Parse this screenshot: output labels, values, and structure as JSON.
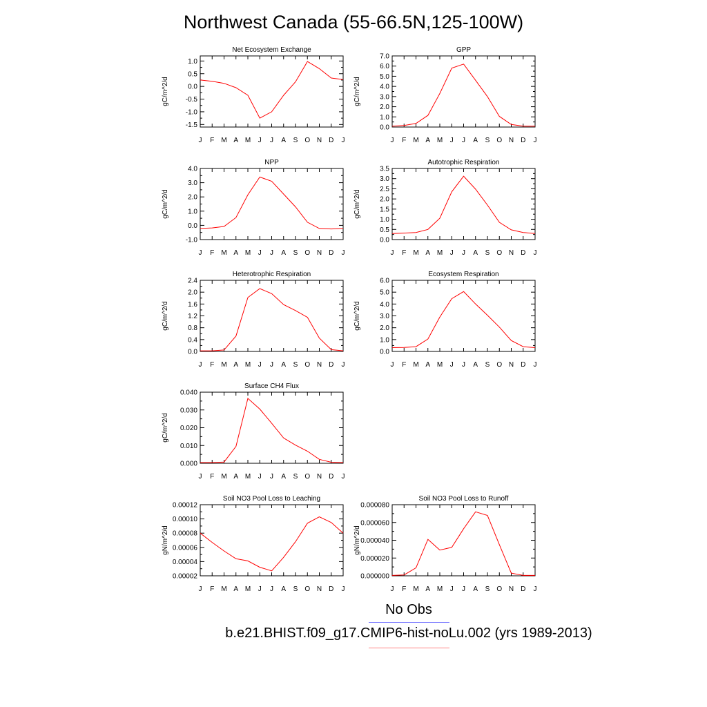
{
  "page": {
    "title": "Northwest Canada (55-66.5N,125-100W)"
  },
  "legend": {
    "entries": [
      {
        "label": "No Obs",
        "color": "#8080ff"
      },
      {
        "label": "b.e21.BHIST.f09_g17.CMIP6-hist-noLu.002 (yrs 1989-2013)",
        "color": "#ff8080"
      }
    ]
  },
  "colors": {
    "series": "#ff0000",
    "axis": "#000000"
  },
  "chart_data": [
    {
      "type": "line",
      "title": "Net Ecosystem Exchange",
      "ylabel": "gC/m^2/d",
      "categories": [
        "J",
        "F",
        "M",
        "A",
        "M",
        "J",
        "J",
        "A",
        "S",
        "O",
        "N",
        "D",
        "J"
      ],
      "ylim": [
        -1.6,
        1.2
      ],
      "yticks": [
        "1.0",
        "0.5",
        "0.0",
        "-0.5",
        "-1.0",
        "-1.5"
      ],
      "series": [
        {
          "values": [
            0.25,
            0.2,
            0.12,
            -0.05,
            -0.35,
            -1.25,
            -1.0,
            -0.35,
            0.18,
            0.98,
            0.7,
            0.33,
            0.27
          ]
        }
      ]
    },
    {
      "type": "line",
      "title": "GPP",
      "ylabel": "gC/m^2/d",
      "categories": [
        "J",
        "F",
        "M",
        "A",
        "M",
        "J",
        "J",
        "A",
        "S",
        "O",
        "N",
        "D",
        "J"
      ],
      "ylim": [
        0,
        7.0
      ],
      "yticks": [
        "7.0",
        "6.0",
        "5.0",
        "4.0",
        "3.0",
        "2.0",
        "1.0",
        "0.0"
      ],
      "series": [
        {
          "values": [
            0.08,
            0.15,
            0.35,
            1.15,
            3.3,
            5.8,
            6.2,
            4.6,
            3.0,
            1.05,
            0.25,
            0.08,
            0.08
          ]
        }
      ]
    },
    {
      "type": "line",
      "title": "NPP",
      "ylabel": "gC/m^2/d",
      "categories": [
        "J",
        "F",
        "M",
        "A",
        "M",
        "J",
        "J",
        "A",
        "S",
        "O",
        "N",
        "D",
        "J"
      ],
      "ylim": [
        -1.0,
        4.0
      ],
      "yticks": [
        "4.0",
        "3.0",
        "2.0",
        "1.0",
        "0.0",
        "-1.0"
      ],
      "series": [
        {
          "values": [
            -0.22,
            -0.18,
            -0.08,
            0.55,
            2.15,
            3.4,
            3.1,
            2.2,
            1.3,
            0.22,
            -0.22,
            -0.25,
            -0.22
          ]
        }
      ]
    },
    {
      "type": "line",
      "title": "Autotrophic Respiration",
      "ylabel": "gC/m^2/d",
      "categories": [
        "J",
        "F",
        "M",
        "A",
        "M",
        "J",
        "J",
        "A",
        "S",
        "O",
        "N",
        "D",
        "J"
      ],
      "ylim": [
        0,
        3.5
      ],
      "yticks": [
        "3.5",
        "3.0",
        "2.5",
        "2.0",
        "1.5",
        "1.0",
        "0.5",
        "0.0"
      ],
      "series": [
        {
          "values": [
            0.3,
            0.32,
            0.35,
            0.5,
            1.05,
            2.35,
            3.12,
            2.48,
            1.7,
            0.85,
            0.48,
            0.35,
            0.3
          ]
        }
      ]
    },
    {
      "type": "line",
      "title": "Heterotrophic Respiration",
      "ylabel": "gC/m^2/d",
      "categories": [
        "J",
        "F",
        "M",
        "A",
        "M",
        "J",
        "J",
        "A",
        "S",
        "O",
        "N",
        "D",
        "J"
      ],
      "ylim": [
        0,
        2.4
      ],
      "yticks": [
        "2.4",
        "2.0",
        "1.6",
        "1.2",
        "0.8",
        "0.4",
        "0.0"
      ],
      "series": [
        {
          "values": [
            0.02,
            0.02,
            0.05,
            0.52,
            1.82,
            2.12,
            1.95,
            1.58,
            1.38,
            1.15,
            0.45,
            0.06,
            0.02
          ]
        }
      ]
    },
    {
      "type": "line",
      "title": "Ecosystem Respiration",
      "ylabel": "gC/m^2/d",
      "categories": [
        "J",
        "F",
        "M",
        "A",
        "M",
        "J",
        "J",
        "A",
        "S",
        "O",
        "N",
        "D",
        "J"
      ],
      "ylim": [
        0,
        6.0
      ],
      "yticks": [
        "6.0",
        "5.0",
        "4.0",
        "3.0",
        "2.0",
        "1.0",
        "0.0"
      ],
      "series": [
        {
          "values": [
            0.32,
            0.33,
            0.4,
            1.05,
            2.9,
            4.45,
            5.05,
            4.0,
            3.05,
            2.05,
            0.92,
            0.4,
            0.32
          ]
        }
      ]
    },
    {
      "type": "line",
      "title": "Surface CH4 Flux",
      "ylabel": "gC/m^2/d",
      "categories": [
        "J",
        "F",
        "M",
        "A",
        "M",
        "J",
        "J",
        "A",
        "S",
        "O",
        "N",
        "D",
        "J"
      ],
      "ylim": [
        0,
        0.04
      ],
      "yticks": [
        "0.040",
        "0.030",
        "0.020",
        "0.010",
        "0.000"
      ],
      "series": [
        {
          "values": [
            0.0004,
            0.0004,
            0.0007,
            0.0095,
            0.0365,
            0.0305,
            0.0225,
            0.0142,
            0.0102,
            0.0068,
            0.0022,
            0.0006,
            0.0004
          ]
        }
      ]
    },
    {
      "type": "line",
      "title": "Soil NO3 Pool Loss to Leaching",
      "ylabel": "gN/m^2/d",
      "categories": [
        "J",
        "F",
        "M",
        "A",
        "M",
        "J",
        "J",
        "A",
        "S",
        "O",
        "N",
        "D",
        "J"
      ],
      "ylim": [
        2e-05,
        0.00012
      ],
      "yticks": [
        "0.00012",
        "0.00010",
        "0.00008",
        "0.00006",
        "0.00004",
        "0.00002"
      ],
      "series": [
        {
          "values": [
            8e-05,
            6.7e-05,
            5.5e-05,
            4.4e-05,
            4.1e-05,
            3.2e-05,
            2.7e-05,
            4.6e-05,
            6.8e-05,
            9.4e-05,
            0.000103,
            9.5e-05,
            8e-05
          ]
        }
      ]
    },
    {
      "type": "line",
      "title": "Soil NO3 Pool Loss to Runoff",
      "ylabel": "gN/m^2/d",
      "categories": [
        "J",
        "F",
        "M",
        "A",
        "M",
        "J",
        "J",
        "A",
        "S",
        "O",
        "N",
        "D",
        "J"
      ],
      "ylim": [
        0,
        8e-05
      ],
      "yticks": [
        "0.000080",
        "0.000060",
        "0.000040",
        "0.000020",
        "0.000000"
      ],
      "series": [
        {
          "values": [
            5e-07,
            1e-06,
            9e-06,
            4.1e-05,
            2.9e-05,
            3.2e-05,
            5.3e-05,
            7.2e-05,
            6.8e-05,
            3.5e-05,
            3e-06,
            5e-07,
            5e-07
          ]
        }
      ]
    }
  ]
}
